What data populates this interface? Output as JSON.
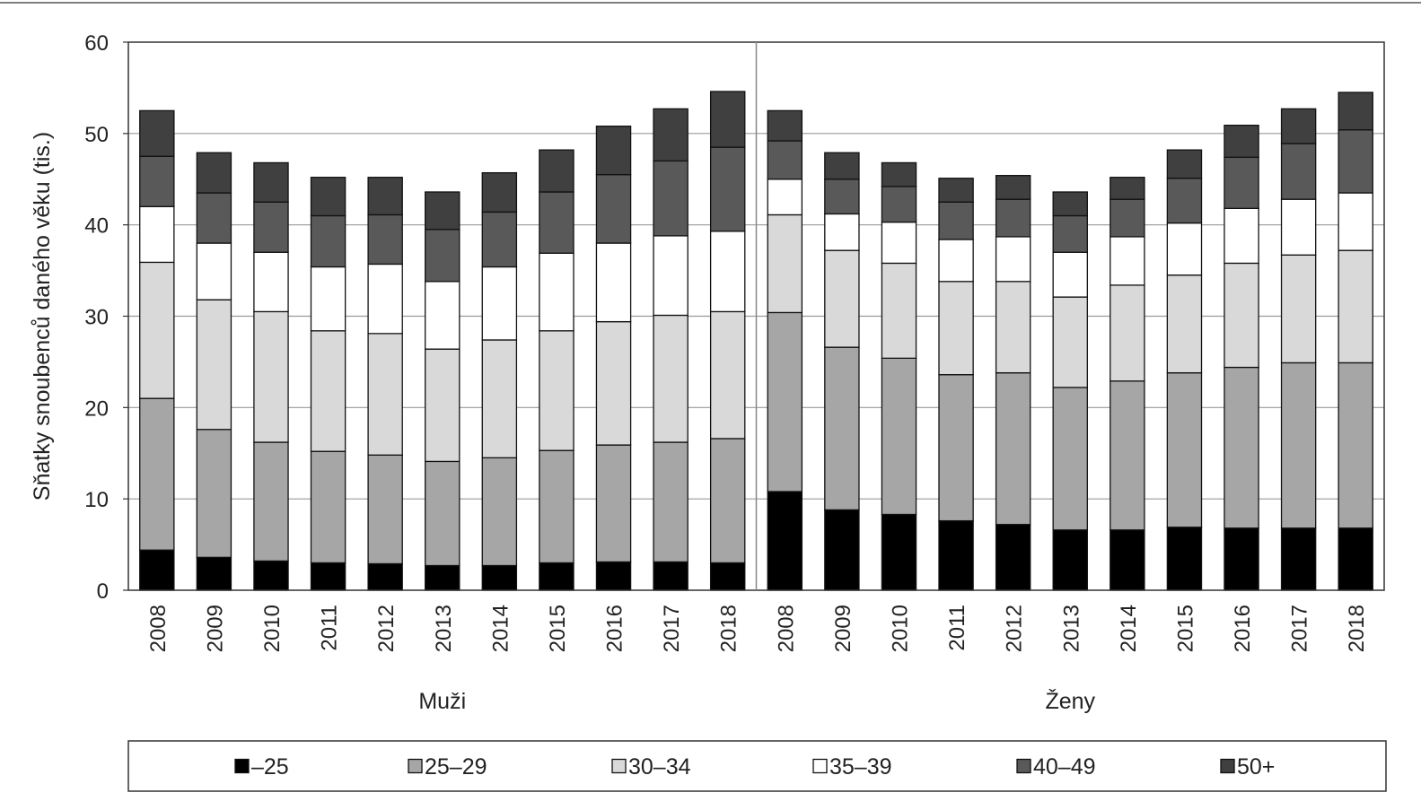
{
  "chart_data": {
    "type": "bar",
    "stacked": true,
    "ylabel": "Sňatky snoubenců daného věku (tis.)",
    "ylim": [
      0,
      60
    ],
    "yticks": [
      0,
      10,
      20,
      30,
      40,
      50,
      60
    ],
    "grid": true,
    "legend_position": "bottom",
    "groups": [
      {
        "label": "Muži",
        "categories": [
          "2008",
          "2009",
          "2010",
          "2011",
          "2012",
          "2013",
          "2014",
          "2015",
          "2016",
          "2017",
          "2018"
        ]
      },
      {
        "label": "Ženy",
        "categories": [
          "2008",
          "2009",
          "2010",
          "2011",
          "2012",
          "2013",
          "2014",
          "2015",
          "2016",
          "2017",
          "2018"
        ]
      }
    ],
    "series": [
      {
        "name": "–25",
        "color": "#000000",
        "values": [
          4.4,
          3.6,
          3.2,
          3.0,
          2.9,
          2.7,
          2.7,
          3.0,
          3.1,
          3.1,
          3.0,
          10.8,
          8.8,
          8.3,
          7.6,
          7.2,
          6.6,
          6.6,
          6.9,
          6.8,
          6.8,
          6.8
        ]
      },
      {
        "name": "25–29",
        "color": "#a6a6a6",
        "values": [
          16.6,
          14.0,
          13.0,
          12.2,
          11.9,
          11.4,
          11.8,
          12.3,
          12.8,
          13.1,
          13.6,
          19.6,
          17.8,
          17.1,
          16.0,
          16.6,
          15.6,
          16.3,
          16.9,
          17.6,
          18.1,
          18.1
        ]
      },
      {
        "name": "30–34",
        "color": "#d9d9d9",
        "values": [
          14.9,
          14.2,
          14.3,
          13.2,
          13.3,
          12.3,
          12.9,
          13.1,
          13.5,
          13.9,
          13.9,
          10.7,
          10.6,
          10.4,
          10.2,
          10.0,
          9.9,
          10.5,
          10.7,
          11.4,
          11.8,
          12.3
        ]
      },
      {
        "name": "35–39",
        "color": "#ffffff",
        "values": [
          6.1,
          6.2,
          6.5,
          7.0,
          7.6,
          7.4,
          8.0,
          8.5,
          8.6,
          8.7,
          8.8,
          3.9,
          4.0,
          4.5,
          4.6,
          4.9,
          4.9,
          5.3,
          5.7,
          6.0,
          6.1,
          6.3
        ]
      },
      {
        "name": "40–49",
        "color": "#595959",
        "values": [
          5.5,
          5.5,
          5.5,
          5.6,
          5.4,
          5.7,
          6.0,
          6.7,
          7.5,
          8.2,
          9.2,
          4.2,
          3.8,
          3.9,
          4.1,
          4.1,
          4.0,
          4.1,
          4.9,
          5.6,
          6.1,
          6.9
        ]
      },
      {
        "name": "50+",
        "color": "#404040",
        "values": [
          5.0,
          4.4,
          4.3,
          4.2,
          4.1,
          4.1,
          4.3,
          4.6,
          5.3,
          5.7,
          6.1,
          3.3,
          2.9,
          2.6,
          2.6,
          2.6,
          2.6,
          2.4,
          3.1,
          3.5,
          3.8,
          4.1
        ]
      }
    ]
  }
}
